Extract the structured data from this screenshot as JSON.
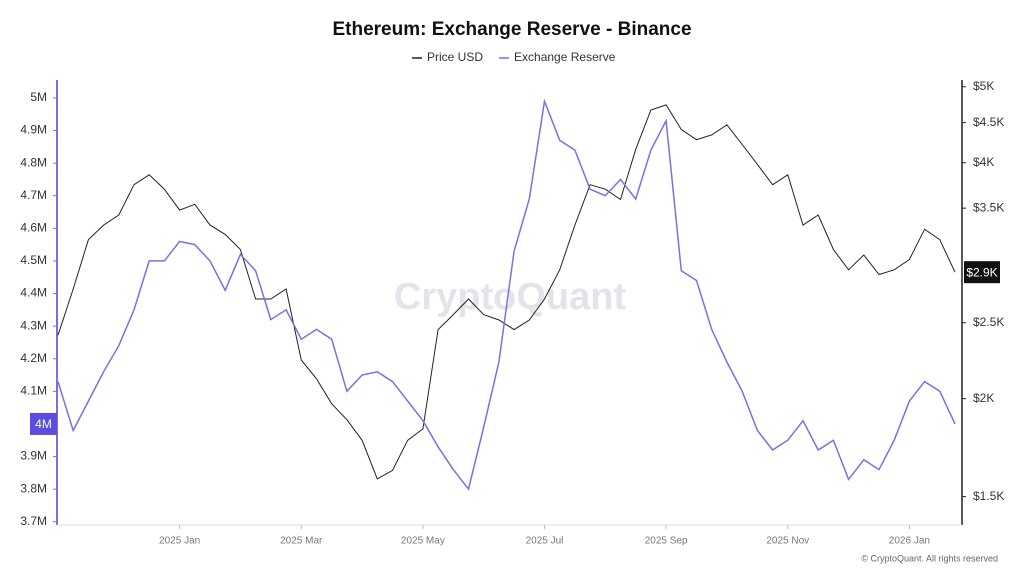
{
  "chart_data": {
    "type": "line",
    "title": "Ethereum: Exchange Reserve - Binance",
    "watermark": "CryptoQuant",
    "footer": "© CryptoQuant. All rights reserved",
    "categories": [
      null,
      null,
      null,
      null,
      null,
      null,
      null,
      null,
      "2025 Jan",
      null,
      null,
      null,
      null,
      null,
      null,
      null,
      "2025 Mar",
      null,
      null,
      null,
      null,
      null,
      null,
      null,
      "2025 May",
      null,
      null,
      null,
      null,
      null,
      null,
      null,
      "2025 Jul",
      null,
      null,
      null,
      null,
      null,
      null,
      null,
      "2025 Sep",
      null,
      null,
      null,
      null,
      null,
      null,
      null,
      "2025 Nov",
      null,
      null,
      null,
      null,
      null,
      null,
      null,
      "2026 Jan",
      null,
      null,
      null
    ],
    "series": [
      {
        "name": "Price USD",
        "color": "#222222",
        "axis": "y2",
        "values": [
          2410,
          2760,
          3190,
          3330,
          3430,
          3750,
          3860,
          3700,
          3480,
          3540,
          3330,
          3240,
          3100,
          2680,
          2680,
          2760,
          2240,
          2120,
          1970,
          1880,
          1770,
          1580,
          1620,
          1770,
          1830,
          2450,
          2560,
          2680,
          2560,
          2520,
          2450,
          2520,
          2680,
          2920,
          3330,
          3750,
          3700,
          3590,
          4160,
          4670,
          4740,
          4410,
          4280,
          4340,
          4470,
          4220,
          3980,
          3750,
          3860,
          3330,
          3430,
          3100,
          2920,
          3050,
          2880,
          2920,
          3010,
          3290,
          3190,
          2900
        ],
        "value_labels": [
          null,
          null,
          null,
          null,
          null,
          null,
          null,
          null,
          null,
          null,
          null,
          null,
          null,
          null,
          null,
          null,
          null,
          null,
          null,
          null,
          null,
          null,
          null,
          null,
          null,
          null,
          null,
          null,
          null,
          null,
          null,
          null,
          null,
          null,
          null,
          null,
          null,
          null,
          null,
          null,
          null,
          null,
          null,
          null,
          null,
          null,
          null,
          null,
          null,
          null,
          null,
          null,
          null,
          null,
          null,
          null,
          null,
          null,
          null,
          "$2.9K"
        ]
      },
      {
        "name": "Exchange Reserve",
        "color": "#7b6fe0",
        "values": [
          4.13,
          3.98,
          4.07,
          4.16,
          4.24,
          4.35,
          4.5,
          4.5,
          4.56,
          4.55,
          4.5,
          4.41,
          4.52,
          4.47,
          4.32,
          4.35,
          4.26,
          4.29,
          4.26,
          4.1,
          4.15,
          4.16,
          4.13,
          4.07,
          4.01,
          3.93,
          3.86,
          3.8,
          3.99,
          4.19,
          4.53,
          4.69,
          4.99,
          4.87,
          4.84,
          4.72,
          4.7,
          4.75,
          4.69,
          4.84,
          4.93,
          4.47,
          4.44,
          4.29,
          4.19,
          4.1,
          3.98,
          3.92,
          3.95,
          4.01,
          3.92,
          3.95,
          3.83,
          3.89,
          3.86,
          3.95,
          4.07,
          4.13,
          4.1,
          4.0
        ],
        "value_labels": [
          null,
          null,
          null,
          null,
          null,
          null,
          null,
          null,
          null,
          null,
          null,
          null,
          null,
          null,
          null,
          null,
          null,
          null,
          null,
          null,
          null,
          null,
          null,
          null,
          null,
          null,
          null,
          null,
          null,
          null,
          null,
          null,
          null,
          null,
          null,
          null,
          null,
          null,
          null,
          null,
          null,
          null,
          null,
          null,
          null,
          null,
          null,
          null,
          null,
          null,
          null,
          null,
          null,
          null,
          null,
          null,
          null,
          null,
          null,
          "4M"
        ]
      }
    ],
    "ylim": [
      3.69,
      5.055
    ],
    "yticks": [
      {
        "value": 5,
        "label": "5M"
      },
      {
        "value": 4.9,
        "label": "4.9M"
      },
      {
        "value": 4.8,
        "label": "4.8M"
      },
      {
        "value": 4.7,
        "label": "4.7M"
      },
      {
        "value": 4.6,
        "label": "4.6M"
      },
      {
        "value": 4.5,
        "label": "4.5M"
      },
      {
        "value": 4.4,
        "label": "4.4M"
      },
      {
        "value": 4.3,
        "label": "4.3M"
      },
      {
        "value": 4.2,
        "label": "4.2M"
      },
      {
        "value": 4.1,
        "label": "4.1M"
      },
      {
        "value": 3.9,
        "label": "3.9M"
      },
      {
        "value": 3.8,
        "label": "3.8M"
      },
      {
        "value": 3.7,
        "label": "3.7M"
      }
    ],
    "y2lim": [
      1380,
      5100
    ],
    "y2scale": "log",
    "y2ticks": [
      {
        "value": 5000,
        "label": "$5K"
      },
      {
        "value": 4500,
        "label": "$4.5K"
      },
      {
        "value": 4000,
        "label": "$4K"
      },
      {
        "value": 3500,
        "label": "$3.5K"
      },
      {
        "value": 2500,
        "label": "$2.5K"
      },
      {
        "value": 2000,
        "label": "$2K"
      },
      {
        "value": 1500,
        "label": "$1.5K"
      }
    ],
    "grid": false,
    "legend": "top"
  }
}
